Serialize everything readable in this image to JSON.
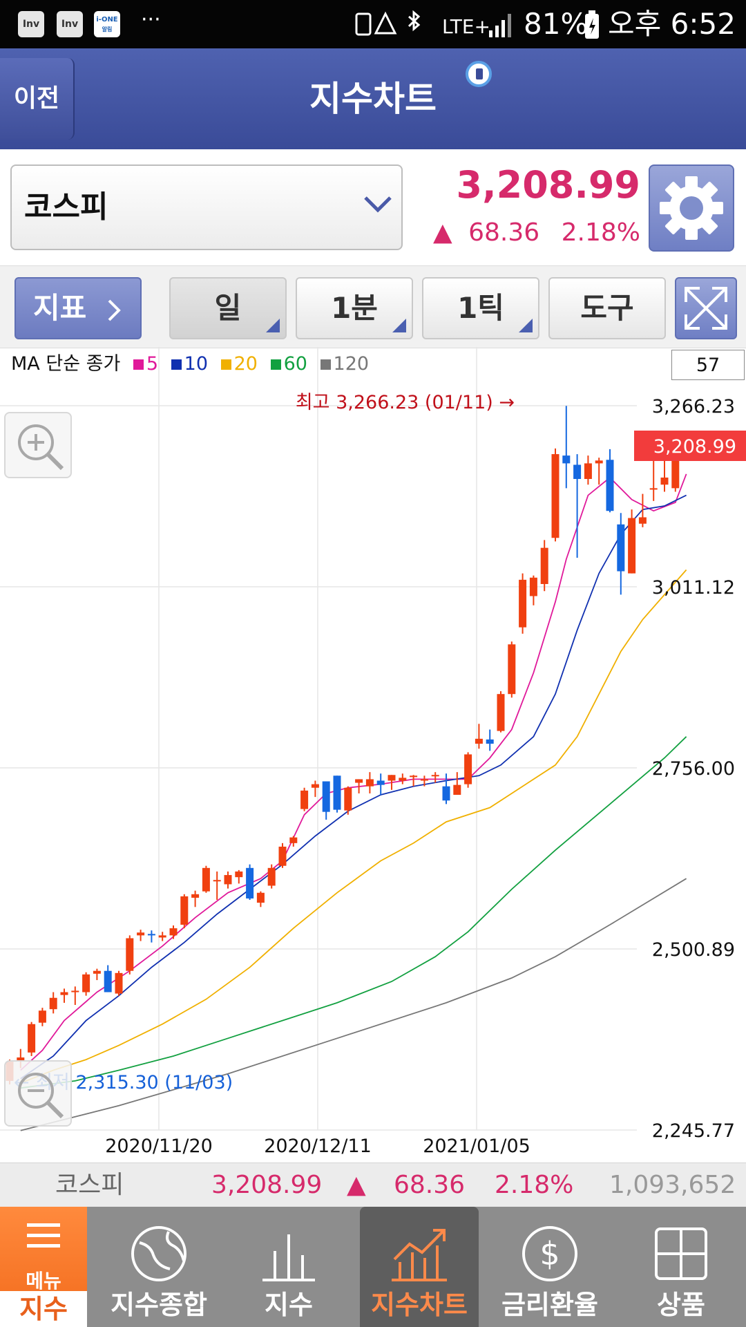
{
  "status_bar": {
    "app_icons": [
      "Inv",
      "Inv",
      "i-ONE"
    ],
    "app_icon_sub": "알림",
    "more": "···",
    "network": "LTE+",
    "battery": "81%",
    "time": "오후 6:52"
  },
  "header": {
    "back_label": "이전",
    "title": "지수차트"
  },
  "quote": {
    "index_name": "코스피",
    "price": "3,208.99",
    "change_arrow": "▲",
    "change": "68.36",
    "change_pct": "2.18%"
  },
  "toolbar": {
    "indicator_label": "지표",
    "period_day": "일",
    "period_minute": "1분",
    "period_tick": "1틱",
    "tools": "도구"
  },
  "legend": {
    "prefix": "MA 단순 종가",
    "items": [
      {
        "label": "5",
        "color": "#e0199a"
      },
      {
        "label": "10",
        "color": "#1030b0"
      },
      {
        "label": "20",
        "color": "#f0b000"
      },
      {
        "label": "60",
        "color": "#12a040"
      },
      {
        "label": "120",
        "color": "#777777"
      }
    ],
    "count": "57"
  },
  "chart_data": {
    "type": "candlestick",
    "ylim": [
      2245.77,
      3266.23
    ],
    "ytick_labels": [
      "3,266.23",
      "3,011.12",
      "2,756.00",
      "2,500.89",
      "2,245.77"
    ],
    "xtick_labels": [
      "2020/11/20",
      "2020/12/11",
      "2021/01/05"
    ],
    "current_price_label": "3,208.99",
    "high_annotation": "최고 3,266.23 (01/11) →",
    "low_annotation": "← 최저 2,315.30 (11/03)",
    "colors": {
      "up": "#f04010",
      "down": "#1568e0",
      "high_label": "#c0101a",
      "low_label": "#1560d8",
      "price_tag": "#f23c3c"
    },
    "candles": [
      [
        2315,
        2345,
        2310,
        2342
      ],
      [
        2344,
        2360,
        2333,
        2348
      ],
      [
        2355,
        2398,
        2350,
        2395
      ],
      [
        2397,
        2418,
        2392,
        2414
      ],
      [
        2416,
        2440,
        2410,
        2432
      ],
      [
        2436,
        2445,
        2425,
        2440
      ],
      [
        2440,
        2448,
        2422,
        2442
      ],
      [
        2440,
        2468,
        2435,
        2465
      ],
      [
        2466,
        2473,
        2457,
        2470
      ],
      [
        2470,
        2478,
        2440,
        2440
      ],
      [
        2438,
        2470,
        2435,
        2467
      ],
      [
        2470,
        2520,
        2465,
        2516
      ],
      [
        2520,
        2528,
        2512,
        2524
      ],
      [
        2522,
        2527,
        2510,
        2520
      ],
      [
        2517,
        2525,
        2512,
        2520
      ],
      [
        2520,
        2534,
        2515,
        2530
      ],
      [
        2535,
        2578,
        2530,
        2575
      ],
      [
        2573,
        2583,
        2560,
        2578
      ],
      [
        2582,
        2618,
        2580,
        2615
      ],
      [
        2598,
        2610,
        2570,
        2598
      ],
      [
        2592,
        2610,
        2586,
        2605
      ],
      [
        2602,
        2612,
        2593,
        2610
      ],
      [
        2615,
        2620,
        2570,
        2572
      ],
      [
        2566,
        2582,
        2560,
        2580
      ],
      [
        2590,
        2620,
        2586,
        2615
      ],
      [
        2618,
        2650,
        2615,
        2645
      ],
      [
        2650,
        2660,
        2645,
        2658
      ],
      [
        2698,
        2728,
        2695,
        2724
      ],
      [
        2728,
        2738,
        2715,
        2733
      ],
      [
        2737,
        2735,
        2683,
        2694
      ],
      [
        2745,
        2745,
        2693,
        2697
      ],
      [
        2696,
        2730,
        2690,
        2728
      ],
      [
        2735,
        2740,
        2720,
        2740
      ],
      [
        2730,
        2750,
        2720,
        2740
      ],
      [
        2738,
        2748,
        2718,
        2732
      ],
      [
        2738,
        2746,
        2725,
        2746
      ],
      [
        2738,
        2748,
        2733,
        2742
      ],
      [
        2743,
        2746,
        2730,
        2745
      ],
      [
        2738,
        2745,
        2730,
        2740
      ],
      [
        2746,
        2750,
        2735,
        2746
      ],
      [
        2730,
        2748,
        2705,
        2710
      ],
      [
        2718,
        2750,
        2718,
        2732
      ],
      [
        2733,
        2778,
        2728,
        2775
      ],
      [
        2790,
        2818,
        2783,
        2797
      ],
      [
        2796,
        2810,
        2780,
        2790
      ],
      [
        2808,
        2864,
        2806,
        2860
      ],
      [
        2860,
        2934,
        2855,
        2930
      ],
      [
        2954,
        3030,
        2945,
        3021
      ],
      [
        2998,
        3027,
        2985,
        3024
      ],
      [
        3015,
        3077,
        3005,
        3066
      ],
      [
        3080,
        3206,
        3075,
        3198
      ],
      [
        3196,
        3266,
        3150,
        3185
      ],
      [
        3183,
        3198,
        3052,
        3163
      ],
      [
        3163,
        3196,
        3155,
        3185
      ],
      [
        3185,
        3193,
        3155,
        3189
      ],
      [
        3190,
        3205,
        3116,
        3118
      ],
      [
        3099,
        3115,
        3000,
        3033
      ],
      [
        3030,
        3120,
        3030,
        3108
      ],
      [
        3100,
        3142,
        3095,
        3109
      ],
      [
        3148,
        3190,
        3132,
        3150
      ],
      [
        3155,
        3205,
        3145,
        3165
      ],
      [
        3150,
        3220,
        3145,
        3209
      ]
    ],
    "ma_lines": [
      {
        "name": "5",
        "color": "#e0199a",
        "points": [
          [
            1,
            2330
          ],
          [
            3,
            2358
          ],
          [
            5,
            2400
          ],
          [
            8,
            2440
          ],
          [
            11,
            2470
          ],
          [
            14,
            2505
          ],
          [
            17,
            2545
          ],
          [
            20,
            2580
          ],
          [
            23,
            2600
          ],
          [
            25,
            2625
          ],
          [
            27,
            2690
          ],
          [
            29,
            2720
          ],
          [
            31,
            2728
          ],
          [
            34,
            2733
          ],
          [
            37,
            2740
          ],
          [
            40,
            2740
          ],
          [
            42,
            2740
          ],
          [
            44,
            2770
          ],
          [
            46,
            2810
          ],
          [
            48,
            2890
          ],
          [
            50,
            2990
          ],
          [
            51,
            3050
          ],
          [
            53,
            3140
          ],
          [
            55,
            3165
          ],
          [
            57,
            3134
          ],
          [
            59,
            3118
          ],
          [
            61,
            3130
          ],
          [
            62,
            3170
          ]
        ]
      },
      {
        "name": "10",
        "color": "#1030b0",
        "points": [
          [
            1,
            2318
          ],
          [
            4,
            2350
          ],
          [
            7,
            2400
          ],
          [
            10,
            2435
          ],
          [
            13,
            2475
          ],
          [
            16,
            2510
          ],
          [
            19,
            2550
          ],
          [
            22,
            2585
          ],
          [
            25,
            2620
          ],
          [
            28,
            2660
          ],
          [
            31,
            2695
          ],
          [
            34,
            2718
          ],
          [
            37,
            2730
          ],
          [
            40,
            2738
          ],
          [
            43,
            2745
          ],
          [
            45,
            2760
          ],
          [
            48,
            2800
          ],
          [
            50,
            2860
          ],
          [
            52,
            2950
          ],
          [
            54,
            3030
          ],
          [
            56,
            3085
          ],
          [
            58,
            3120
          ],
          [
            60,
            3125
          ],
          [
            62,
            3140
          ]
        ]
      },
      {
        "name": "20",
        "color": "#f0b000",
        "points": [
          [
            1,
            2312
          ],
          [
            4,
            2330
          ],
          [
            7,
            2345
          ],
          [
            10,
            2365
          ],
          [
            14,
            2395
          ],
          [
            18,
            2430
          ],
          [
            22,
            2475
          ],
          [
            26,
            2530
          ],
          [
            30,
            2580
          ],
          [
            34,
            2625
          ],
          [
            37,
            2650
          ],
          [
            40,
            2680
          ],
          [
            44,
            2700
          ],
          [
            46,
            2720
          ],
          [
            50,
            2760
          ],
          [
            52,
            2800
          ],
          [
            54,
            2860
          ],
          [
            56,
            2920
          ],
          [
            58,
            2965
          ],
          [
            60,
            3000
          ],
          [
            62,
            3035
          ]
        ]
      },
      {
        "name": "60",
        "color": "#12a040",
        "points": [
          [
            1,
            2305
          ],
          [
            6,
            2315
          ],
          [
            10,
            2330
          ],
          [
            15,
            2350
          ],
          [
            20,
            2375
          ],
          [
            25,
            2400
          ],
          [
            30,
            2425
          ],
          [
            35,
            2455
          ],
          [
            39,
            2490
          ],
          [
            42,
            2525
          ],
          [
            46,
            2585
          ],
          [
            50,
            2640
          ],
          [
            55,
            2705
          ],
          [
            60,
            2770
          ],
          [
            62,
            2800
          ]
        ]
      },
      {
        "name": "120",
        "color": "#777777",
        "points": [
          [
            1,
            2245
          ],
          [
            10,
            2280
          ],
          [
            20,
            2325
          ],
          [
            30,
            2375
          ],
          [
            40,
            2425
          ],
          [
            46,
            2460
          ],
          [
            50,
            2490
          ],
          [
            55,
            2535
          ],
          [
            62,
            2600
          ]
        ]
      }
    ]
  },
  "summary": {
    "name": "코스피",
    "price": "3,208.99",
    "arrow": "▲",
    "change": "68.36",
    "pct": "2.18%",
    "volume": "1,093,652"
  },
  "nav": {
    "menu": "메뉴",
    "current_section": "지수",
    "items": [
      "지수종합",
      "지수",
      "지수차트",
      "금리환율",
      "상품"
    ]
  }
}
